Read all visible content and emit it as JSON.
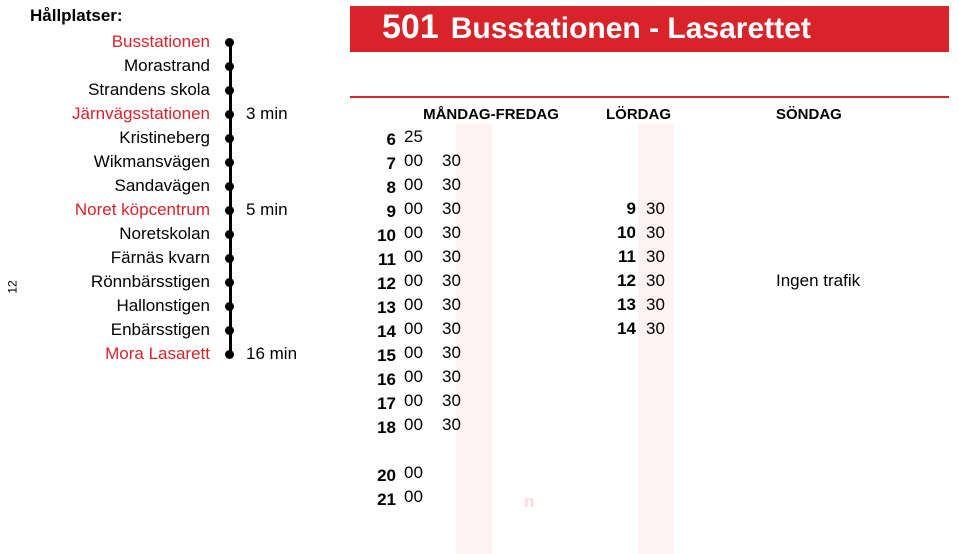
{
  "page_number": "12",
  "stops_label": "Hållplatser:",
  "stops": [
    {
      "name": "Busstationen",
      "red": true,
      "time": ""
    },
    {
      "name": "Morastrand",
      "red": false,
      "time": ""
    },
    {
      "name": "Strandens skola",
      "red": false,
      "time": ""
    },
    {
      "name": "Järnvägsstationen",
      "red": true,
      "time": "3 min"
    },
    {
      "name": "Kristineberg",
      "red": false,
      "time": ""
    },
    {
      "name": "Wikmansvägen",
      "red": false,
      "time": ""
    },
    {
      "name": "Sandavägen",
      "red": false,
      "time": ""
    },
    {
      "name": "Noret köpcentrum",
      "red": true,
      "time": "5 min"
    },
    {
      "name": "Noretskolan",
      "red": false,
      "time": ""
    },
    {
      "name": "Färnäs kvarn",
      "red": false,
      "time": ""
    },
    {
      "name": "Rönnbärsstigen",
      "red": false,
      "time": ""
    },
    {
      "name": "Hallonstigen",
      "red": false,
      "time": ""
    },
    {
      "name": "Enbärsstigen",
      "red": false,
      "time": ""
    },
    {
      "name": "Mora Lasarett",
      "red": true,
      "time": "16 min"
    }
  ],
  "route_number": "501",
  "route_name": "Busstationen - Lasarettet",
  "headers": {
    "weekday": "MÅNDAG-FREDAG",
    "saturday": "LÖRDAG",
    "sunday": "SÖNDAG"
  },
  "hours": [
    "6",
    "7",
    "8",
    "9",
    "10",
    "11",
    "12",
    "13",
    "14",
    "15",
    "16",
    "17",
    "18",
    "",
    "20",
    "21"
  ],
  "weekday": [
    {
      "m1": "25",
      "m2": ""
    },
    {
      "m1": "00",
      "m2": "30"
    },
    {
      "m1": "00",
      "m2": "30"
    },
    {
      "m1": "00",
      "m2": "30"
    },
    {
      "m1": "00",
      "m2": "30"
    },
    {
      "m1": "00",
      "m2": "30"
    },
    {
      "m1": "00",
      "m2": "30"
    },
    {
      "m1": "00",
      "m2": "30"
    },
    {
      "m1": "00",
      "m2": "30"
    },
    {
      "m1": "00",
      "m2": "30"
    },
    {
      "m1": "00",
      "m2": "30"
    },
    {
      "m1": "00",
      "m2": "30"
    },
    {
      "m1": "00",
      "m2": "30"
    },
    {
      "m1": "",
      "m2": ""
    },
    {
      "m1": "00",
      "m2": ""
    },
    {
      "m1": "00",
      "m2": ""
    }
  ],
  "saturday": [
    {
      "h": "9",
      "m": "30"
    },
    {
      "h": "10",
      "m": "30"
    },
    {
      "h": "11",
      "m": "30"
    },
    {
      "h": "12",
      "m": "30"
    },
    {
      "h": "13",
      "m": "30"
    },
    {
      "h": "14",
      "m": "30"
    }
  ],
  "sunday_text": "Ingen trafik",
  "faint_text": "n",
  "colors": {
    "red": "#d8232a",
    "stripe": "#fef2f2"
  }
}
